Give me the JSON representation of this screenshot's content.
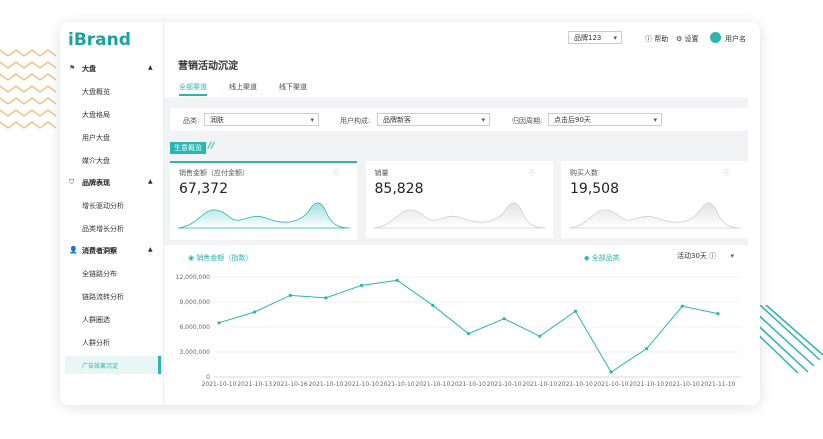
{
  "logo": "iBrand",
  "sidebar": [
    {
      "title": "大盘",
      "items": [
        "大盘概览",
        "大盘格局",
        "用户大盘",
        "媒介大盘"
      ]
    },
    {
      "title": "品牌表现",
      "items": [
        "增长驱动分析",
        "品类增长分析"
      ]
    },
    {
      "title": "消费者洞察",
      "items": [
        "全链路分布",
        "链路流转分析",
        "人群圈选",
        "人群分析",
        "广告效果沉淀"
      ]
    }
  ],
  "topbar": {
    "brand_select": "品牌123",
    "help": "帮助",
    "settings": "设置",
    "user": "用户名"
  },
  "page_title": "营销活动沉淀",
  "tabs": [
    "全部渠道",
    "线上渠道",
    "线下渠道"
  ],
  "filters": [
    {
      "label": "品类:",
      "value": "润肤"
    },
    {
      "label": "用户构成:",
      "value": "品牌新客"
    },
    {
      "label": "归因周期:",
      "value": "点击后90天"
    }
  ],
  "section_tag": "生意概览",
  "cards": [
    {
      "label": "销售金额（应付金额）",
      "value": "67,372"
    },
    {
      "label": "销量",
      "value": "85,828"
    },
    {
      "label": "购买人数",
      "value": "19,508"
    }
  ],
  "chart_data": {
    "type": "line",
    "metric": "销售金额（指数）",
    "period": "活动30天",
    "categories": [
      "2021-10-10",
      "2021-10-13",
      "2021-10-16",
      "2021-10-10",
      "2021-10-10",
      "2021-10-10",
      "2021-10-10",
      "2021-10-10",
      "2021-10-10",
      "2021-10-10",
      "2021-10-10",
      "2021-10-10",
      "2021-10-10",
      "2021-10-10",
      "2021-11-10"
    ],
    "series": [
      {
        "name": "全部品类",
        "color": "#2ab5b0",
        "values": [
          6500000,
          7800000,
          9800000,
          9500000,
          11000000,
          11600000,
          8600000,
          5200000,
          7000000,
          4900000,
          7900000,
          600000,
          3400000,
          8500000,
          7600000
        ]
      }
    ],
    "ylim": [
      0,
      12000000
    ],
    "yticks": [
      0,
      {
        "value": 3000000,
        "label": "3,000,000"
      },
      {
        "value": 6000000,
        "label": "6,000,000"
      },
      {
        "value": 9000000,
        "label": "9,000,000"
      },
      {
        "value": 12000000,
        "label": "12,000,000"
      }
    ],
    "grid": true
  }
}
